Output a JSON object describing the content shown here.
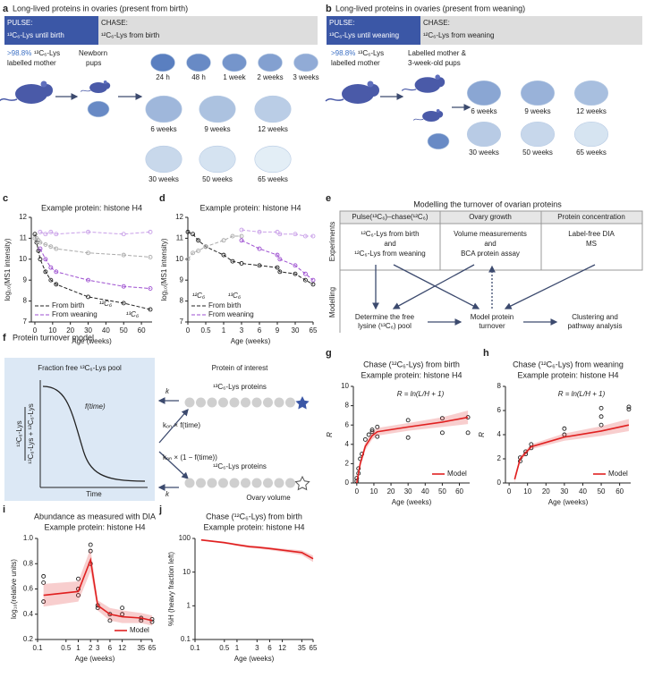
{
  "panel_labels": [
    "a",
    "b",
    "c",
    "d",
    "e",
    "f",
    "g",
    "h",
    "i",
    "j"
  ],
  "panel_a": {
    "title": "Long-lived proteins in ovaries (present from birth)",
    "pulse_label": "PULSE:",
    "pulse_text": "¹³C₆-Lys until birth",
    "chase_label": "CHASE:",
    "chase_text": "¹²C₆-Lys from birth",
    "mother_pct": ">98.8%",
    "mother_lys": "¹³C₆-Lys",
    "mother_text": "labelled mother",
    "pups": [
      "Newborn",
      "pups"
    ],
    "timepoints": [
      "24 h",
      "48 h",
      "1 week",
      "2 weeks",
      "3 weeks",
      "6 weeks",
      "9 weeks",
      "12 weeks",
      "30 weeks",
      "50 weeks",
      "65 weeks"
    ]
  },
  "panel_b": {
    "title": "Long-lived proteins in ovaries (present from weaning)",
    "pulse_label": "PULSE:",
    "pulse_text": "¹³C₆-Lys until weaning",
    "chase_label": "CHASE:",
    "chase_text": "¹²C₆-Lys from weaning",
    "mother_pct": ">98.8%",
    "mother_lys": "¹³C₆-Lys",
    "mother_text": "labelled mother",
    "pups": [
      "Labelled mother &",
      "3-week-old pups"
    ],
    "timepoints": [
      "6 weeks",
      "9 weeks",
      "12 weeks",
      "30 weeks",
      "50 weeks",
      "65 weeks"
    ]
  },
  "panel_e": {
    "title": "Modelling the turnover of ovarian proteins",
    "rows": [
      "Experiments",
      "Modelling"
    ],
    "columns": [
      "Pulse(¹³C₆)–chase(¹²C₆)",
      "Ovary growth",
      "Protein concentration"
    ],
    "cells": [
      [
        "¹²C₆-Lys from birth",
        "and",
        "¹²C₆-Lys from weaning"
      ],
      [
        "Volume measurements",
        "and",
        "BCA protein assay"
      ],
      [
        "Label-free DIA",
        "MS"
      ]
    ],
    "steps": [
      [
        "Determine the free",
        "lysine (¹³C₆) pool"
      ],
      [
        "Model protein",
        "turnover"
      ],
      [
        "Clustering and",
        "pathway analysis"
      ]
    ]
  },
  "panel_f": {
    "title": "Protein turnover model",
    "pool": "Fraction free ¹³C₆-Lys pool",
    "protein": "Protein of interest",
    "curve": "f(time)",
    "time": "Time",
    "ylabel_num": "¹³C₆-Lys",
    "ylabel_den": "¹³C₆-Lys + ¹²C₆-Lys",
    "heavy": "¹³C₆-Lys proteins",
    "light": "¹²C₆-Lys proteins",
    "volume": "Ovary volume",
    "k": "k",
    "kon_f": "kₒₙ × f(time)",
    "kon_1f": "kₒₙ × (1 − f(time))"
  },
  "chart_data": [
    {
      "type": "line",
      "title": "Example protein: histone H4",
      "xlabel": "Age (weeks)",
      "ylabel": "log₁₀(MS1 intensity)",
      "xscale": "linear",
      "xlim": [
        -2,
        66
      ],
      "ylim": [
        7,
        12
      ],
      "xticks": [
        0,
        10,
        20,
        30,
        40,
        50,
        60
      ],
      "yticks": [
        7,
        8,
        9,
        10,
        11,
        12
      ],
      "legend": [
        {
          "name": "From birth",
          "color": "#222222"
        },
        {
          "name": "From weaning",
          "color": "#9d4fd0"
        }
      ],
      "annotations": [
        "¹²C₆",
        "¹³C₆"
      ],
      "series": [
        {
          "color": "#222222",
          "style": "line-points",
          "dash": true,
          "x": [
            0,
            1,
            2,
            3,
            6,
            9,
            12,
            30,
            50,
            65
          ],
          "values": [
            11.2,
            10.8,
            10.4,
            10.0,
            9.4,
            9.0,
            8.8,
            8.2,
            7.9,
            7.6
          ]
        },
        {
          "color": "#aaaaaa",
          "style": "line-points",
          "dash": true,
          "x": [
            0,
            1,
            2,
            3,
            6,
            9,
            12,
            30,
            50,
            65
          ],
          "values": [
            11.0,
            11.0,
            10.9,
            10.8,
            10.7,
            10.6,
            10.5,
            10.3,
            10.2,
            10.1
          ]
        },
        {
          "color": "#c9a0e8",
          "style": "line-points",
          "dash": true,
          "x": [
            3,
            6,
            9,
            12,
            30,
            50,
            65
          ],
          "values": [
            11.3,
            11.2,
            11.3,
            11.2,
            11.3,
            11.2,
            11.3
          ]
        },
        {
          "color": "#9d4fd0",
          "style": "line-points",
          "dash": true,
          "x": [
            3,
            6,
            9,
            12,
            30,
            50,
            65
          ],
          "values": [
            10.5,
            10.0,
            9.6,
            9.4,
            9.0,
            8.7,
            8.6
          ]
        }
      ]
    },
    {
      "type": "line",
      "title": "Example protein: histone H4",
      "xlabel": "Age (weeks)",
      "ylabel": "log₁₀(MS1 intensity)",
      "xscale": "piecewise",
      "xlim": [
        0,
        65
      ],
      "ylim": [
        7,
        12
      ],
      "xticks": [
        0,
        0.5,
        1,
        3,
        6,
        9,
        30,
        65
      ],
      "yticks": [
        7,
        8,
        9,
        10,
        11,
        12
      ],
      "legend": [
        {
          "name": "From birth",
          "color": "#222222"
        },
        {
          "name": "From weaning",
          "color": "#9d4fd0"
        }
      ],
      "annotations": [
        "¹²C₆",
        "¹³C₆"
      ],
      "series": [
        {
          "color": "#222222",
          "style": "line-points",
          "dash": true,
          "x": [
            0,
            0.14,
            0.29,
            0.5,
            1,
            2,
            3,
            6,
            9,
            12,
            30,
            50,
            65
          ],
          "values": [
            11.3,
            11.2,
            10.9,
            10.6,
            10.2,
            9.9,
            9.8,
            9.7,
            9.6,
            9.4,
            9.3,
            9.0,
            8.8
          ]
        },
        {
          "color": "#aaaaaa",
          "style": "line-points",
          "dash": true,
          "x": [
            0,
            0.14,
            0.29,
            0.5,
            1,
            2,
            3
          ],
          "values": [
            10.0,
            10.3,
            10.4,
            10.6,
            10.9,
            11.1,
            11.1
          ]
        },
        {
          "color": "#c9a0e8",
          "style": "line-points",
          "dash": true,
          "x": [
            3,
            6,
            9,
            12,
            30,
            50,
            65
          ],
          "values": [
            11.4,
            11.3,
            11.3,
            11.2,
            11.2,
            11.1,
            11.1
          ]
        },
        {
          "color": "#9d4fd0",
          "style": "line-points",
          "dash": true,
          "x": [
            3,
            6,
            9,
            12,
            30,
            50,
            65
          ],
          "values": [
            10.9,
            10.5,
            10.2,
            10.0,
            9.7,
            9.3,
            9.0
          ]
        }
      ]
    },
    {
      "type": "scatter",
      "title": "Chase (¹²C₆-Lys) from birth",
      "subtitle": "Example protein: histone H4",
      "xlabel": "Age (weeks)",
      "ylabel": "R",
      "xscale": "linear",
      "xlim": [
        -2,
        66
      ],
      "ylim": [
        0,
        10
      ],
      "xticks": [
        0,
        10,
        20,
        30,
        40,
        50,
        60
      ],
      "yticks": [
        0,
        2,
        4,
        6,
        8,
        10
      ],
      "annotations": [
        "R = ln(L/H + 1)"
      ],
      "series": [
        {
          "color": "#222222",
          "style": "points",
          "x": [
            0,
            0,
            1,
            1,
            2,
            3,
            5,
            7,
            9,
            9,
            12,
            12,
            30,
            30,
            50,
            50,
            65,
            65
          ],
          "values": [
            0.2,
            0.5,
            1,
            1.5,
            2.5,
            3,
            4.5,
            5,
            5.5,
            5.3,
            4.8,
            5.8,
            6.5,
            4.7,
            6.7,
            5.2,
            6.8,
            5.2
          ]
        },
        {
          "name": "Model",
          "color": "#e02020",
          "style": "line",
          "x": [
            0,
            2,
            5,
            9,
            12,
            30,
            50,
            65
          ],
          "values": [
            0,
            2,
            3.8,
            4.9,
            5.3,
            5.8,
            6.3,
            6.8
          ],
          "lower": [
            0,
            1.6,
            3.4,
            4.5,
            4.9,
            5.4,
            5.8,
            6.1
          ],
          "upper": [
            0.2,
            2.4,
            4.2,
            5.3,
            5.7,
            6.2,
            6.8,
            7.5
          ]
        }
      ]
    },
    {
      "type": "scatter",
      "title": "Chase (¹²C₆-Lys) from weaning",
      "subtitle": "Example protein: histone H4",
      "xlabel": "Age (weeks)",
      "ylabel": "R",
      "xscale": "linear",
      "xlim": [
        -2,
        66
      ],
      "ylim": [
        0,
        8
      ],
      "xticks": [
        0,
        10,
        20,
        30,
        40,
        50,
        60
      ],
      "yticks": [
        0,
        2,
        4,
        6,
        8
      ],
      "annotations": [
        "R = ln(L/H + 1)"
      ],
      "series": [
        {
          "color": "#222222",
          "style": "points",
          "x": [
            6,
            6,
            9,
            9,
            12,
            12,
            30,
            30,
            50,
            50,
            50,
            65,
            65
          ],
          "values": [
            1.8,
            2.1,
            2.4,
            2.6,
            2.9,
            3.2,
            4,
            4.5,
            4.8,
            5.5,
            6.2,
            6.1,
            6.3
          ]
        },
        {
          "name": "Model",
          "color": "#e02020",
          "style": "line",
          "x": [
            3,
            6,
            9,
            12,
            30,
            50,
            65
          ],
          "values": [
            0.3,
            2.0,
            2.5,
            3.0,
            3.8,
            4.3,
            4.8
          ],
          "lower": [
            0,
            1.8,
            2.3,
            2.8,
            3.5,
            3.9,
            4.3
          ],
          "upper": [
            0.6,
            2.2,
            2.7,
            3.2,
            4.1,
            4.7,
            5.3
          ]
        }
      ]
    },
    {
      "type": "scatter",
      "title": "Abundance as measured with DIA",
      "subtitle": "Example protein: histone H4",
      "xlabel": "Age (weeks)",
      "ylabel": "log₁₀(relative units)",
      "xscale": "log",
      "xlim": [
        0.1,
        65
      ],
      "ylim": [
        0.2,
        1
      ],
      "xticks": [
        0.1,
        0.5,
        1,
        2,
        3,
        6,
        12,
        35,
        65
      ],
      "yticks": [
        0.2,
        0.4,
        0.6,
        0.8,
        {
          "value": 1,
          "label": "1.0"
        }
      ],
      "series": [
        {
          "color": "#222222",
          "style": "points",
          "x": [
            0.14,
            0.14,
            0.14,
            1,
            1,
            1,
            2,
            2,
            2,
            3,
            3,
            6,
            6,
            12,
            12,
            35,
            35,
            65,
            65
          ],
          "values": [
            0.7,
            0.65,
            0.5,
            0.68,
            0.6,
            0.55,
            0.95,
            0.9,
            0.8,
            0.47,
            0.45,
            0.4,
            0.35,
            0.45,
            0.4,
            0.37,
            0.35,
            0.36,
            0.34
          ]
        },
        {
          "name": "Model",
          "color": "#e02020",
          "style": "line",
          "x": [
            0.14,
            1,
            2,
            3,
            6,
            12,
            35,
            65
          ],
          "values": [
            0.55,
            0.58,
            0.83,
            0.47,
            0.4,
            0.38,
            0.37,
            0.35
          ],
          "lower": [
            0.46,
            0.5,
            0.74,
            0.43,
            0.35,
            0.33,
            0.33,
            0.31
          ],
          "upper": [
            0.64,
            0.66,
            0.92,
            0.51,
            0.45,
            0.43,
            0.41,
            0.39
          ]
        }
      ]
    },
    {
      "type": "line",
      "title": "Chase (¹²C₆-Lys) from birth",
      "subtitle": "Example protein: histone H4",
      "xlabel": "Age (weeks)",
      "ylabel": "%H (heavy fraction left)",
      "xscale": "log",
      "yscale": "log",
      "xlim": [
        0.1,
        65
      ],
      "ylim": [
        0.1,
        100
      ],
      "xticks": [
        0.1,
        0.5,
        1,
        3,
        6,
        12,
        35,
        65
      ],
      "yticks": [
        0.1,
        1,
        10,
        100
      ],
      "series": [
        {
          "color": "#e02020",
          "style": "line",
          "x": [
            0.14,
            0.5,
            1,
            2,
            3,
            6,
            12,
            35,
            65
          ],
          "values": [
            90,
            75,
            65,
            57,
            55,
            50,
            45,
            38,
            25
          ],
          "lower": [
            85,
            70,
            60,
            52,
            50,
            45,
            40,
            32,
            20
          ],
          "upper": [
            95,
            80,
            70,
            62,
            60,
            55,
            50,
            44,
            31
          ]
        }
      ]
    }
  ]
}
